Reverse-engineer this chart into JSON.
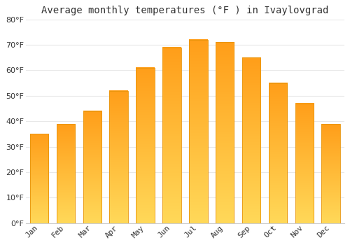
{
  "title": "Average monthly temperatures (°F ) in Ivaylovgrad",
  "months": [
    "Jan",
    "Feb",
    "Mar",
    "Apr",
    "May",
    "Jun",
    "Jul",
    "Aug",
    "Sep",
    "Oct",
    "Nov",
    "Dec"
  ],
  "values": [
    35,
    39,
    44,
    52,
    61,
    69,
    72,
    71,
    65,
    55,
    47,
    39
  ],
  "bar_color_main": "#FFA500",
  "bar_color_light": "#FFD070",
  "bar_border_color": "#E8940A",
  "background_color": "#FFFFFF",
  "grid_color": "#E8E8E8",
  "text_color": "#333333",
  "ylim": [
    0,
    80
  ],
  "yticks": [
    0,
    10,
    20,
    30,
    40,
    50,
    60,
    70,
    80
  ],
  "title_fontsize": 10,
  "tick_fontsize": 8
}
